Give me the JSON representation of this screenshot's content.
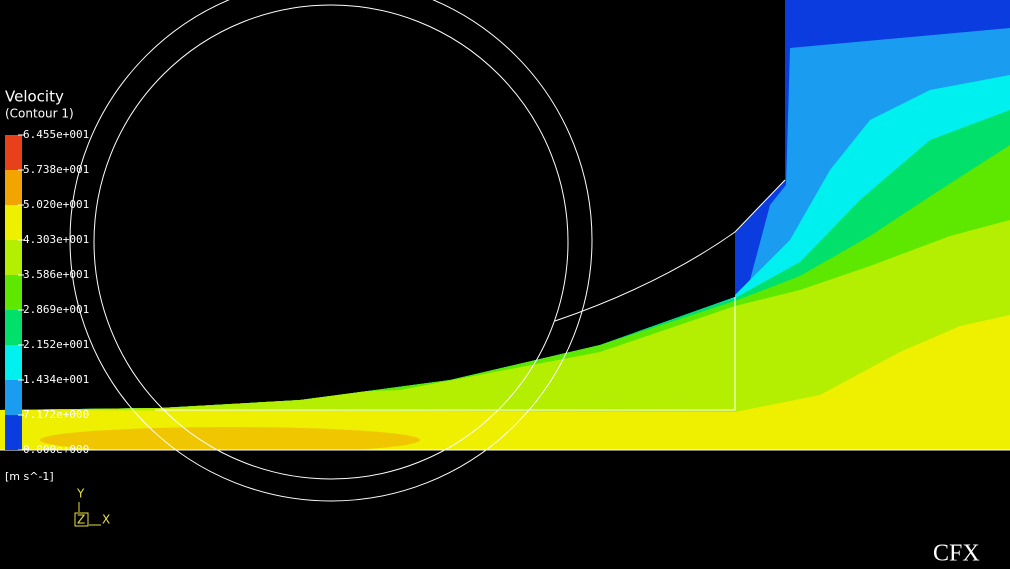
{
  "legend": {
    "title": "Velocity",
    "subtitle": "(Contour 1)",
    "labels": [
      "6.455e+001",
      "5.738e+001",
      "5.020e+001",
      "4.303e+001",
      "3.586e+001",
      "2.869e+001",
      "2.152e+001",
      "1.434e+001",
      "7.172e+000",
      "0.000e+000"
    ],
    "colors": [
      "#e8401a",
      "#f2a400",
      "#eef000",
      "#b4ee00",
      "#5ee800",
      "#00e06a",
      "#00f0f0",
      "#1a9cf0",
      "#0a3ce0"
    ],
    "units": "[m s^-1]"
  },
  "axes": {
    "y": "Y",
    "z": "Z",
    "x": "X"
  },
  "logo": "CFX"
}
